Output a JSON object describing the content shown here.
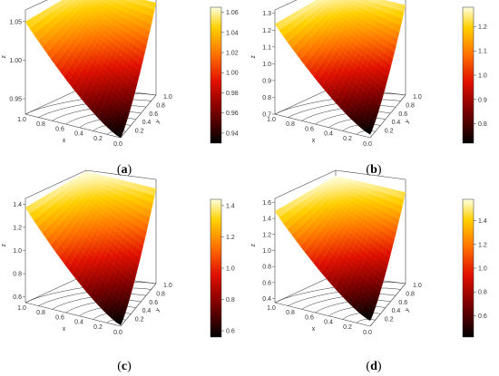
{
  "chart_data": [
    {
      "type": "surface3d",
      "panel_label": "a",
      "xlabel": "x",
      "ylabel": "y",
      "zlabel": "z",
      "zlim": [
        0.93,
        1.065
      ],
      "z_ticks": [
        "0.95",
        "1.00",
        "1.05"
      ],
      "x_ticks": [
        "1.0",
        "0.8",
        "0.6",
        "0.4",
        "0.2",
        "0.0"
      ],
      "y_ticks": [
        "0.0",
        "0.2",
        "0.4",
        "0.6",
        "0.8",
        "1.0"
      ],
      "colorbar_ticks": [
        "1.06",
        "1.04",
        "1.02",
        "1.00",
        "0.98",
        "0.96",
        "0.94"
      ],
      "colorbar_range": [
        0.93,
        1.065
      ],
      "corner_values": {
        "x0_y0": 0.93,
        "x1_y0": 1.06,
        "x0_y1": 1.06,
        "x1_y1": 1.06
      }
    },
    {
      "type": "surface3d",
      "panel_label": "b",
      "xlabel": "x",
      "ylabel": "y",
      "zlabel": "z",
      "zlim": [
        0.7,
        1.32
      ],
      "z_ticks": [
        "0.7",
        "0.8",
        "0.9",
        "1.0",
        "1.1",
        "1.2",
        "1.3"
      ],
      "x_ticks": [
        "1.0",
        "0.8",
        "0.6",
        "0.4",
        "0.2",
        "0.0"
      ],
      "y_ticks": [
        "0.0",
        "0.2",
        "0.4",
        "0.6",
        "0.8",
        "1.0"
      ],
      "colorbar_ticks": [
        "1.2",
        "1.1",
        "1.0",
        "0.9",
        "0.8"
      ],
      "colorbar_range": [
        0.72,
        1.28
      ],
      "corner_values": {
        "x0_y0": 0.72,
        "x1_y0": 1.28,
        "x0_y1": 1.28,
        "x1_y1": 1.28
      }
    },
    {
      "type": "surface3d",
      "panel_label": "c",
      "xlabel": "x",
      "ylabel": "y",
      "zlabel": "z",
      "zlim": [
        0.55,
        1.45
      ],
      "z_ticks": [
        "0.6",
        "0.8",
        "1.0",
        "1.2",
        "1.4"
      ],
      "x_ticks": [
        "1.0",
        "0.8",
        "0.6",
        "0.4",
        "0.2",
        "0.0"
      ],
      "y_ticks": [
        "0.0",
        "0.2",
        "0.4",
        "0.6",
        "0.8",
        "1.0"
      ],
      "colorbar_ticks": [
        "1.4",
        "1.2",
        "1.0",
        "0.8",
        "0.6"
      ],
      "colorbar_range": [
        0.56,
        1.44
      ],
      "corner_values": {
        "x0_y0": 0.56,
        "x1_y0": 1.44,
        "x0_y1": 1.44,
        "x1_y1": 1.44
      }
    },
    {
      "type": "surface3d",
      "panel_label": "d",
      "xlabel": "x",
      "ylabel": "y",
      "zlabel": "z",
      "zlim": [
        0.35,
        1.65
      ],
      "z_ticks": [
        "0.4",
        "0.6",
        "0.8",
        "1.0",
        "1.2",
        "1.4",
        "1.6"
      ],
      "x_ticks": [
        "1.0",
        "0.8",
        "0.6",
        "0.4",
        "0.2",
        "0.0"
      ],
      "y_ticks": [
        "0.0",
        "0.2",
        "0.4",
        "0.6",
        "0.8",
        "1.0"
      ],
      "colorbar_ticks": [
        "1.4",
        "1.2",
        "1.0",
        "0.8",
        "0.6"
      ],
      "colorbar_range": [
        0.42,
        1.58
      ],
      "corner_values": {
        "x0_y0": 0.42,
        "x1_y0": 1.58,
        "x0_y1": 1.58,
        "x1_y1": 1.58
      }
    }
  ]
}
